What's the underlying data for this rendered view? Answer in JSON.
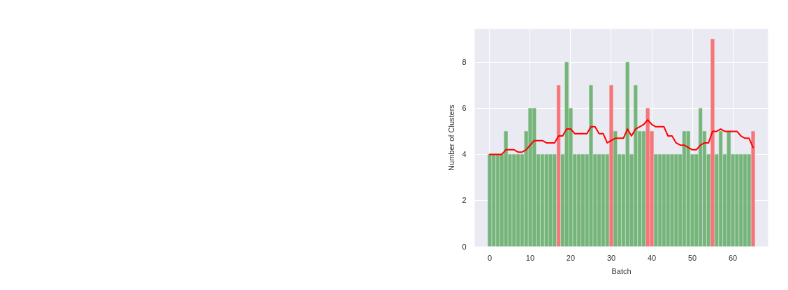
{
  "chart_data": {
    "type": "bar",
    "xlabel": "Batch",
    "ylabel": "Number of Clusters",
    "x": [
      0,
      1,
      2,
      3,
      4,
      5,
      6,
      7,
      8,
      9,
      10,
      11,
      12,
      13,
      14,
      15,
      16,
      17,
      18,
      19,
      20,
      21,
      22,
      23,
      24,
      25,
      26,
      27,
      28,
      29,
      30,
      31,
      32,
      33,
      34,
      35,
      36,
      37,
      38,
      39,
      40,
      41,
      42,
      43,
      44,
      45,
      46,
      47,
      48,
      49,
      50,
      51,
      52,
      53,
      54,
      55,
      56,
      57,
      58,
      59,
      60,
      61,
      62,
      63,
      64,
      65
    ],
    "series": [
      {
        "values": [
          4,
          4,
          4,
          4,
          5,
          4,
          4,
          4,
          4,
          5,
          6,
          6,
          4,
          4,
          4,
          4,
          4,
          7,
          4,
          8,
          6,
          4,
          4,
          4,
          4,
          7,
          4,
          4,
          4,
          4,
          7,
          5,
          4,
          4,
          8,
          4,
          7,
          5,
          5,
          6,
          5,
          4,
          4,
          4,
          4,
          4,
          4,
          4,
          5,
          5,
          4,
          4,
          6,
          5,
          4,
          9,
          4,
          5,
          4,
          5,
          4,
          4,
          4,
          4,
          4,
          5
        ],
        "colors": [
          "#75b579",
          "#75b579",
          "#75b579",
          "#75b579",
          "#75b579",
          "#75b579",
          "#75b579",
          "#75b579",
          "#75b579",
          "#75b579",
          "#75b579",
          "#75b579",
          "#75b579",
          "#75b579",
          "#75b579",
          "#75b579",
          "#75b579",
          "#f57579",
          "#75b579",
          "#75b579",
          "#75b579",
          "#75b579",
          "#75b579",
          "#75b579",
          "#75b579",
          "#75b579",
          "#75b579",
          "#75b579",
          "#75b579",
          "#75b579",
          "#f57579",
          "#75b579",
          "#75b579",
          "#75b579",
          "#75b579",
          "#75b579",
          "#75b579",
          "#75b579",
          "#75b579",
          "#f57579",
          "#f57579",
          "#75b579",
          "#75b579",
          "#75b579",
          "#75b579",
          "#75b579",
          "#75b579",
          "#75b579",
          "#75b579",
          "#75b579",
          "#75b579",
          "#75b579",
          "#75b579",
          "#75b579",
          "#75b579",
          "#f57579",
          "#75b579",
          "#75b579",
          "#75b579",
          "#75b579",
          "#75b579",
          "#75b579",
          "#75b579",
          "#75b579",
          "#75b579",
          "#f57579"
        ]
      },
      {
        "type": "line",
        "color": "#ff0000",
        "line_style": "solid",
        "values": [
          4.0,
          4.0,
          4.0,
          4.0,
          4.2,
          4.2,
          4.2,
          4.1,
          4.1,
          4.2,
          4.4,
          4.6,
          4.6,
          4.6,
          4.5,
          4.5,
          4.5,
          4.8,
          4.8,
          5.1,
          5.1,
          4.9,
          4.9,
          4.9,
          4.9,
          5.2,
          5.2,
          4.9,
          4.9,
          4.5,
          4.6,
          4.7,
          4.7,
          4.7,
          5.1,
          4.8,
          5.1,
          5.2,
          5.3,
          5.5,
          5.3,
          5.2,
          5.2,
          5.2,
          4.8,
          4.8,
          4.5,
          4.4,
          4.4,
          4.3,
          4.2,
          4.2,
          4.4,
          4.5,
          4.5,
          5.0,
          5.0,
          5.1,
          5.0,
          5.0,
          5.0,
          5.0,
          4.8,
          4.7,
          4.7,
          4.3
        ]
      }
    ],
    "xlim": [
      -3.7,
      68.7
    ],
    "ylim": [
      0,
      9.45
    ],
    "xticks": [
      0,
      10,
      20,
      30,
      40,
      50,
      60
    ],
    "yticks": [
      0,
      2,
      4,
      6,
      8
    ],
    "grid": true
  }
}
